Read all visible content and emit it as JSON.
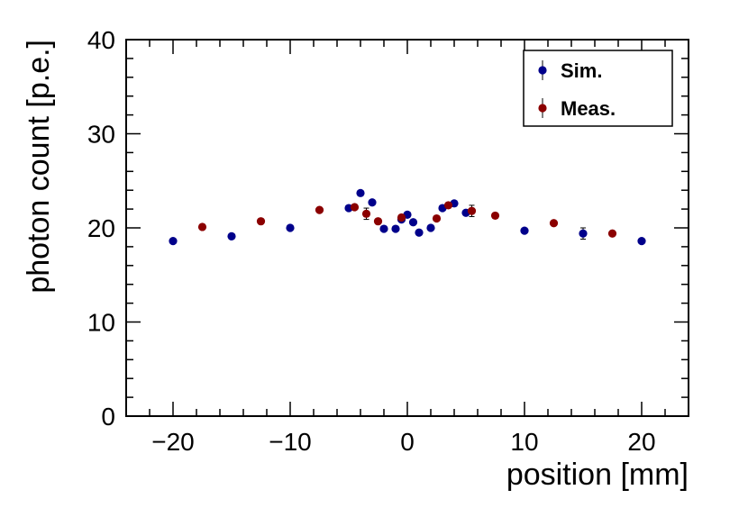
{
  "chart_data": {
    "type": "scatter",
    "title": "",
    "xlabel": "position [mm]",
    "ylabel": "photon count [p.e.]",
    "xlim": [
      -24,
      24
    ],
    "ylim": [
      0,
      40
    ],
    "x_ticks": [
      -20,
      -10,
      0,
      10,
      20
    ],
    "x_tick_labels": [
      "−20",
      "−10",
      "0",
      "10",
      "20"
    ],
    "y_ticks": [
      0,
      10,
      20,
      30,
      40
    ],
    "y_tick_labels": [
      "0",
      "10",
      "20",
      "30",
      "40"
    ],
    "grid": false,
    "legend_position": "top-right",
    "series": [
      {
        "name": "Sim.",
        "color": "#00008b",
        "x": [
          -20,
          -15,
          -10,
          -5,
          -4,
          -3,
          -2,
          -1,
          -0.5,
          0,
          0.5,
          1,
          2,
          3,
          4,
          5,
          10,
          15,
          20
        ],
        "y": [
          18.6,
          19.1,
          20.0,
          22.1,
          23.7,
          22.7,
          19.9,
          19.9,
          20.9,
          21.4,
          20.6,
          19.5,
          20.0,
          22.1,
          22.6,
          21.6,
          19.7,
          19.4,
          18.6
        ],
        "yerr": [
          0.1,
          0.1,
          0.1,
          0.1,
          0.1,
          0.1,
          0.1,
          0.1,
          0.1,
          0.1,
          0.1,
          0.1,
          0.1,
          0.1,
          0.1,
          0.1,
          0.1,
          0.6,
          0.1
        ]
      },
      {
        "name": "Meas.",
        "color": "#8b0000",
        "x": [
          -17.5,
          -12.5,
          -7.5,
          -4.5,
          -3.5,
          -2.5,
          -0.5,
          2.5,
          3.5,
          5.5,
          7.5,
          12.5,
          17.5
        ],
        "y": [
          20.1,
          20.7,
          21.9,
          22.2,
          21.5,
          20.7,
          21.1,
          21.0,
          22.4,
          21.8,
          21.3,
          20.5,
          19.4
        ],
        "yerr": [
          0.1,
          0.1,
          0.1,
          0.1,
          0.6,
          0.1,
          0.1,
          0.1,
          0.1,
          0.6,
          0.1,
          0.1,
          0.1
        ]
      }
    ]
  }
}
